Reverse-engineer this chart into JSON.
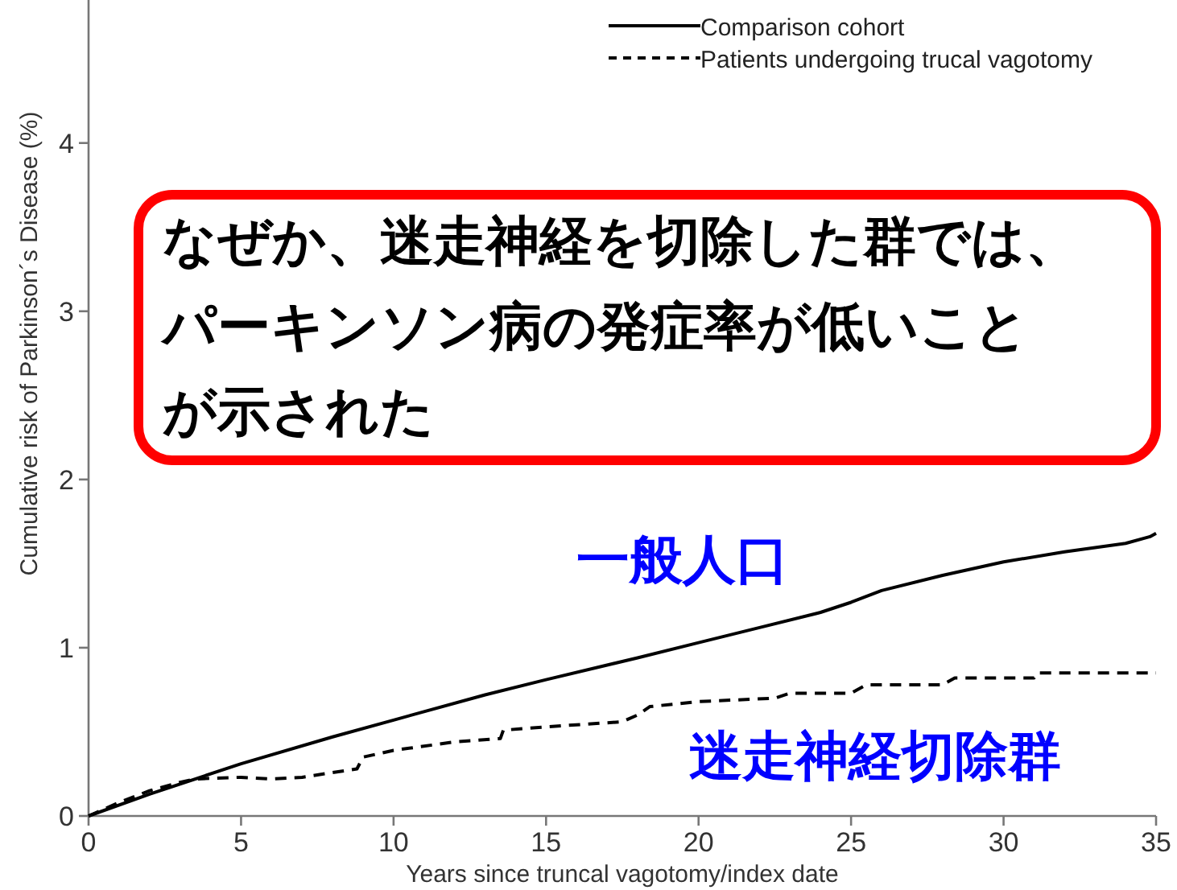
{
  "chart_data": {
    "type": "line",
    "xlabel": "Years since truncal vagotomy/index date",
    "ylabel": "Cumulative risk of Parkinson´s Disease (%)",
    "xlim": [
      0,
      35
    ],
    "xticks": [
      0,
      5,
      10,
      15,
      20,
      25,
      30,
      35
    ],
    "ylim": [
      0,
      4.85
    ],
    "yticks": [
      0,
      1,
      2,
      3,
      4
    ],
    "grid": false,
    "legend": "top right",
    "marker": "none",
    "series": [
      {
        "name": "Comparison cohort",
        "color": "#000000",
        "line_style": "solid",
        "x": [
          0,
          2,
          5,
          8,
          10,
          13,
          15,
          18,
          20,
          22,
          24,
          25,
          26,
          28,
          30,
          32,
          34,
          34.8,
          35
        ],
        "values": [
          0,
          0.13,
          0.31,
          0.47,
          0.57,
          0.72,
          0.81,
          0.94,
          1.03,
          1.12,
          1.21,
          1.27,
          1.34,
          1.43,
          1.51,
          1.57,
          1.62,
          1.66,
          1.68
        ]
      },
      {
        "name": "Patients undergoing trucal vagotomy",
        "color": "#000000",
        "line_style": "dashed",
        "x": [
          0,
          1,
          2,
          3,
          3.5,
          5,
          6,
          7,
          8.8,
          9,
          10,
          12,
          13.5,
          13.6,
          15,
          17.5,
          18,
          18.4,
          20,
          22.5,
          23,
          25,
          25.5,
          28,
          28.4,
          31,
          31.1,
          35
        ],
        "values": [
          0,
          0.08,
          0.15,
          0.2,
          0.22,
          0.23,
          0.22,
          0.23,
          0.28,
          0.35,
          0.39,
          0.44,
          0.46,
          0.51,
          0.53,
          0.56,
          0.6,
          0.65,
          0.68,
          0.7,
          0.73,
          0.73,
          0.78,
          0.78,
          0.82,
          0.82,
          0.85,
          0.85
        ]
      }
    ],
    "annotations": [
      "なぜか、迷走神経を切除した群では、",
      "パーキンソン病の発症率が低いこと",
      "が示された",
      "一般人口",
      "迷走神経切除群"
    ]
  }
}
